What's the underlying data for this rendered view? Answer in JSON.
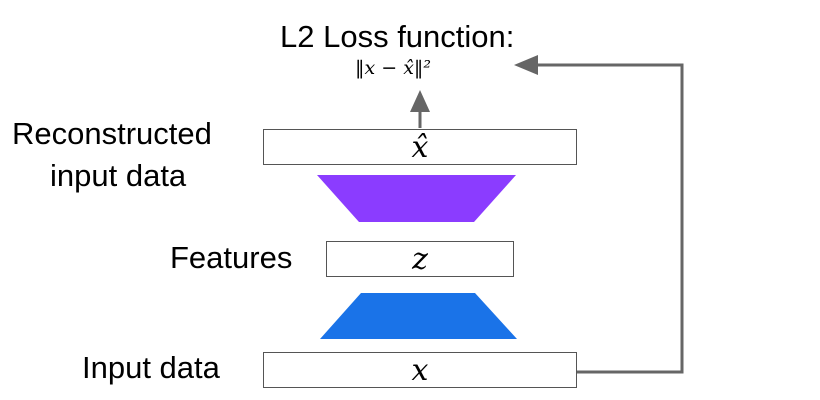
{
  "loss": {
    "title": "L2 Loss function:",
    "formula": "‖x − x̂‖²"
  },
  "labels": {
    "reconstructed": [
      "Reconstructed",
      "input data"
    ],
    "features": "Features",
    "input": "Input data"
  },
  "boxes": {
    "reconstructed_symbol": "x̂",
    "features_symbol": "z",
    "input_symbol": "x"
  },
  "colors": {
    "decoder": "#8b3cff",
    "encoder": "#1a73e8",
    "arrow": "#666666",
    "box_border": "#555555"
  }
}
